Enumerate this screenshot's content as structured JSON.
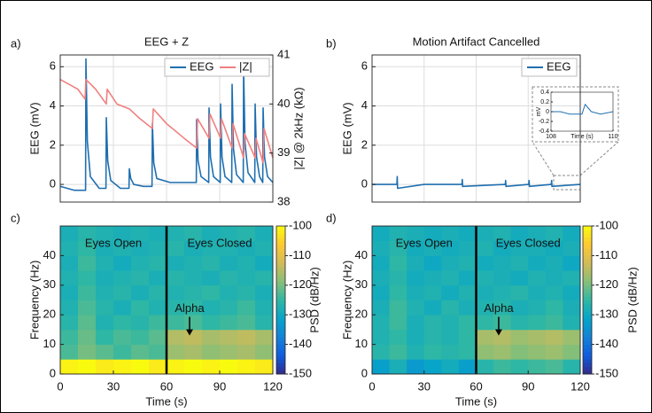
{
  "chart_data": [
    {
      "type": "line",
      "panel_label": "a)",
      "title": "EEG + Z",
      "ylabel": "EEG (mV)",
      "y2label": "|Z| @ 2kHz (kΩ)",
      "xlim": [
        0,
        120
      ],
      "xticks": [
        0,
        30,
        60,
        90,
        120
      ],
      "xticklabels": false,
      "ylim": [
        -0.9,
        6.6
      ],
      "yticks": [
        0,
        2,
        4,
        6
      ],
      "y2lim": [
        38,
        41
      ],
      "y2ticks": [
        38,
        39,
        40,
        41
      ],
      "grid": true,
      "legend": "upper right",
      "series": [
        {
          "name": "EEG",
          "color": "#1f6fb0",
          "x": [
            0,
            8,
            14.3,
            14.5,
            15.3,
            17,
            22,
            25.8,
            26,
            26.8,
            28.5,
            34,
            38.8,
            39,
            39.8,
            41.5,
            47,
            51.8,
            52,
            52.8,
            54.5,
            62,
            70,
            76.8,
            77,
            77.8,
            79.5,
            83.8,
            84,
            84.8,
            86.5,
            90.3,
            90.5,
            91.3,
            93,
            96.8,
            97,
            97.8,
            99.5,
            103.3,
            103.5,
            104.3,
            106,
            109.8,
            110,
            110.8,
            112.5,
            114.3,
            114.5,
            115.3,
            117,
            120
          ],
          "values": [
            -0.1,
            -0.3,
            -0.3,
            6.4,
            2.2,
            0.4,
            -0.2,
            -0.2,
            3.4,
            1.2,
            0.2,
            -0.2,
            -0.2,
            0.8,
            0.3,
            0,
            -0.1,
            -0.1,
            3.1,
            1.1,
            0.3,
            0.1,
            0.1,
            0.1,
            3.3,
            1.2,
            0.4,
            0.1,
            3.9,
            1.4,
            0.4,
            0.1,
            4.1,
            1.4,
            0.4,
            0.1,
            5.1,
            1.8,
            0.5,
            0.1,
            5.9,
            2.1,
            0.6,
            0.1,
            4.1,
            1.4,
            0.4,
            0.1,
            3.9,
            1.4,
            0.4,
            0.1
          ]
        },
        {
          "name": "|Z|",
          "color": "#f08080",
          "axis": "y2",
          "x": [
            0,
            5,
            10,
            14,
            14.5,
            20,
            26,
            26.5,
            32,
            39,
            45,
            52,
            52.5,
            60,
            70,
            77,
            77.5,
            84,
            84.5,
            90.5,
            91,
            97,
            97.5,
            103.5,
            104,
            110,
            110.5,
            114.5,
            115,
            120
          ],
          "values": [
            40.5,
            40.4,
            40.3,
            40.1,
            40.5,
            40.3,
            40.0,
            40.3,
            40.0,
            39.9,
            39.7,
            39.5,
            39.9,
            39.6,
            39.3,
            39.1,
            39.7,
            39.3,
            39.8,
            39.3,
            39.7,
            39.1,
            39.6,
            38.9,
            39.4,
            38.9,
            39.3,
            38.8,
            39.5,
            38.9
          ]
        }
      ]
    },
    {
      "type": "line",
      "panel_label": "b)",
      "title": "Motion Artifact Cancelled",
      "ylabel": "EEG (mV)",
      "xlim": [
        0,
        120
      ],
      "xticks": [
        0,
        30,
        60,
        90,
        120
      ],
      "xticklabels": false,
      "ylim": [
        -0.9,
        6.6
      ],
      "yticks": [
        0,
        2,
        4,
        6
      ],
      "grid": true,
      "legend": "upper right",
      "series": [
        {
          "name": "EEG",
          "color": "#1f6fb0",
          "x": [
            0,
            14.3,
            14.5,
            14.7,
            30,
            51.8,
            52,
            52.2,
            76.8,
            77,
            77.2,
            90.3,
            90.5,
            90.7,
            103.3,
            103.5,
            103.7,
            120
          ],
          "values": [
            0,
            0,
            0.4,
            -0.2,
            0,
            0,
            0.25,
            -0.1,
            0,
            0.2,
            -0.1,
            0,
            0.2,
            -0.1,
            0,
            0.2,
            -0.1,
            0
          ]
        }
      ]
    },
    {
      "type": "line",
      "xlabel": "Time (s)",
      "ylabel": "mV",
      "xlim": [
        108,
        110
      ],
      "xticks": [
        108,
        110
      ],
      "xticklabels": true,
      "ylim": [
        -0.4,
        0.4
      ],
      "yticks": [
        -0.4,
        -0.2,
        0,
        0.2,
        0.4
      ],
      "grid": false,
      "series": [
        {
          "color": "#1f6fb0",
          "x": [
            108,
            108.3,
            108.6,
            109,
            109.1,
            109.3,
            109.6,
            110
          ],
          "values": [
            0,
            0,
            -0.05,
            -0.05,
            0.15,
            0.0,
            -0.05,
            0
          ]
        }
      ]
    },
    {
      "type": "heatmap",
      "panel_label": "c)",
      "xlabel": "Time (s)",
      "ylabel": "Frequency (Hz)",
      "colorbar_label": "PSD (dB/Hz)",
      "colormap": "parula",
      "clim": [
        -150,
        -100
      ],
      "cticks": [
        -150,
        -140,
        -130,
        -120,
        -110,
        -100
      ],
      "xlim": [
        0,
        120
      ],
      "xticks": [
        0,
        30,
        60,
        90,
        120
      ],
      "ylim": [
        0,
        50
      ],
      "yticks": [
        0,
        10,
        20,
        30,
        40
      ],
      "xbins": [
        0,
        10,
        20,
        30,
        40,
        50,
        60,
        70,
        80,
        90,
        100,
        110,
        120
      ],
      "ybins": [
        0,
        5,
        10,
        15,
        20,
        25,
        30,
        35,
        40,
        45,
        50
      ],
      "divider": 60,
      "annotations": [
        {
          "text": "Eyes Open",
          "x": 30,
          "y": 44
        },
        {
          "text": "Eyes Closed",
          "x": 90,
          "y": 44
        },
        {
          "text": "Alpha",
          "x": 73,
          "y": 22,
          "arrow_to": [
            73,
            13
          ]
        }
      ],
      "z": [
        [
          -101,
          -100,
          -102,
          -101,
          -100,
          -102,
          -101,
          -100,
          -101,
          -100,
          -101,
          -102
        ],
        [
          -123,
          -120,
          -122,
          -124,
          -122,
          -123,
          -117,
          -116,
          -118,
          -117,
          -116,
          -118
        ],
        [
          -124,
          -121,
          -125,
          -123,
          -124,
          -122,
          -115,
          -114,
          -116,
          -115,
          -114,
          -116
        ],
        [
          -126,
          -122,
          -127,
          -125,
          -126,
          -124,
          -124,
          -123,
          -125,
          -124,
          -123,
          -126
        ],
        [
          -127,
          -123,
          -126,
          -128,
          -125,
          -127,
          -126,
          -125,
          -127,
          -126,
          -124,
          -127
        ],
        [
          -128,
          -124,
          -127,
          -126,
          -128,
          -126,
          -127,
          -126,
          -125,
          -127,
          -126,
          -128
        ],
        [
          -127,
          -125,
          -128,
          -127,
          -126,
          -128,
          -126,
          -127,
          -128,
          -126,
          -127,
          -126
        ],
        [
          -128,
          -124,
          -127,
          -129,
          -127,
          -126,
          -128,
          -127,
          -126,
          -128,
          -127,
          -129
        ],
        [
          -127,
          -125,
          -128,
          -127,
          -128,
          -127,
          -126,
          -128,
          -127,
          -127,
          -128,
          -127
        ],
        [
          -128,
          -126,
          -127,
          -128,
          -127,
          -128,
          -127,
          -126,
          -128,
          -127,
          -126,
          -128
        ]
      ]
    },
    {
      "type": "heatmap",
      "panel_label": "d)",
      "xlabel": "Time (s)",
      "ylabel": "Frequency (Hz)",
      "colorbar_label": "PSD (dB/Hz)",
      "colormap": "parula",
      "clim": [
        -150,
        -100
      ],
      "cticks": [
        -150,
        -140,
        -130,
        -120,
        -110,
        -100
      ],
      "xlim": [
        0,
        120
      ],
      "xticks": [
        0,
        30,
        60,
        90,
        120
      ],
      "ylim": [
        0,
        50
      ],
      "yticks": [
        0,
        10,
        20,
        30,
        40
      ],
      "xbins": [
        0,
        10,
        20,
        30,
        40,
        50,
        60,
        70,
        80,
        90,
        100,
        110,
        120
      ],
      "ybins": [
        0,
        5,
        10,
        15,
        20,
        25,
        30,
        35,
        40,
        45,
        50
      ],
      "divider": 60,
      "annotations": [
        {
          "text": "Eyes Open",
          "x": 30,
          "y": 44
        },
        {
          "text": "Eyes Closed",
          "x": 90,
          "y": 44
        },
        {
          "text": "Alpha",
          "x": 73,
          "y": 22,
          "arrow_to": [
            73,
            13
          ]
        }
      ],
      "z": [
        [
          -132,
          -128,
          -133,
          -131,
          -129,
          -132,
          -126,
          -124,
          -125,
          -124,
          -123,
          -126
        ],
        [
          -126,
          -124,
          -127,
          -125,
          -126,
          -125,
          -118,
          -117,
          -119,
          -118,
          -117,
          -119
        ],
        [
          -127,
          -125,
          -128,
          -126,
          -127,
          -125,
          -116,
          -115,
          -117,
          -116,
          -115,
          -117
        ],
        [
          -127,
          -124,
          -128,
          -126,
          -127,
          -125,
          -125,
          -124,
          -126,
          -125,
          -124,
          -127
        ],
        [
          -128,
          -124,
          -127,
          -129,
          -126,
          -128,
          -127,
          -126,
          -128,
          -127,
          -125,
          -128
        ],
        [
          -129,
          -125,
          -128,
          -127,
          -129,
          -127,
          -128,
          -127,
          -126,
          -128,
          -127,
          -129
        ],
        [
          -128,
          -126,
          -129,
          -128,
          -127,
          -129,
          -127,
          -128,
          -129,
          -127,
          -128,
          -127
        ],
        [
          -129,
          -125,
          -128,
          -130,
          -128,
          -127,
          -129,
          -128,
          -127,
          -129,
          -128,
          -130
        ],
        [
          -128,
          -126,
          -129,
          -128,
          -129,
          -128,
          -127,
          -129,
          -128,
          -128,
          -129,
          -128
        ],
        [
          -129,
          -127,
          -128,
          -129,
          -128,
          -129,
          -128,
          -127,
          -129,
          -128,
          -127,
          -129
        ]
      ]
    }
  ]
}
